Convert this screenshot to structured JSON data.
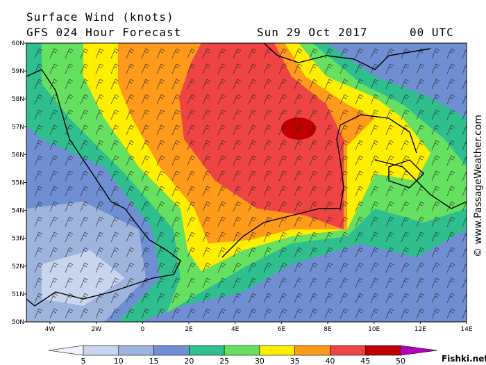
{
  "header": {
    "title": "Surface Wind (knots)",
    "subtitle": "GFS 024 Hour Forecast",
    "date": "Sun 29 Oct 2017",
    "time": "00 UTC"
  },
  "lat_labels": [
    "60N",
    "59N",
    "58N",
    "57N",
    "56N",
    "55N",
    "54N",
    "53N",
    "52N",
    "51N",
    "50N"
  ],
  "lon_labels": [
    "4W",
    "2W",
    "0",
    "2E",
    "4E",
    "6E",
    "8E",
    "10E",
    "12E",
    "14E"
  ],
  "colorbar": {
    "labels": [
      5,
      10,
      15,
      20,
      25,
      30,
      35,
      40,
      45,
      50
    ],
    "colors": [
      "#f0f2fa",
      "#c9d5ee",
      "#9fb4dd",
      "#6f8fd2",
      "#2fbf8f",
      "#66e060",
      "#ffee00",
      "#ff9a1a",
      "#ee4444",
      "#c00000",
      "#b000b8"
    ]
  },
  "credit": "© www.PassageWeather.com",
  "watermark": "Fishki.net"
}
